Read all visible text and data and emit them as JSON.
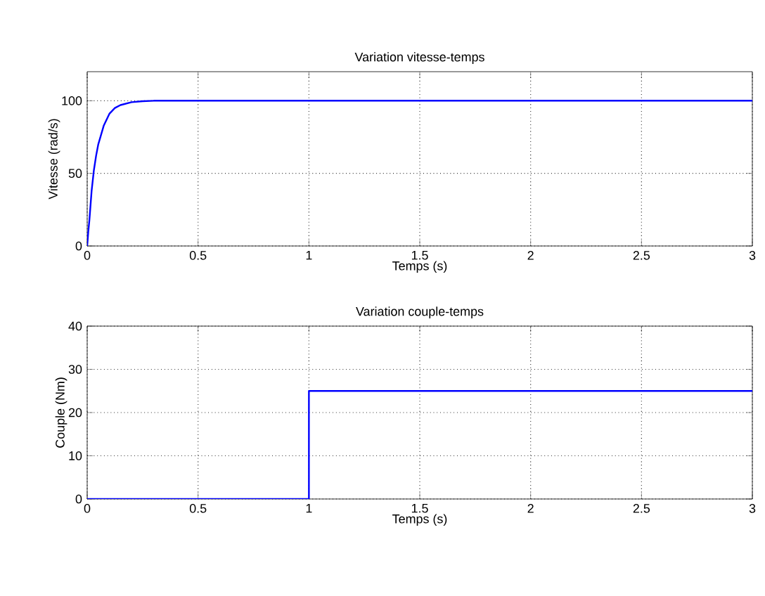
{
  "chart_data": [
    {
      "type": "line",
      "title": "Variation vitesse-temps",
      "xlabel": "Temps (s)",
      "ylabel": "Vitesse (rad/s)",
      "series": [
        {
          "color": "#0000ff",
          "x": [
            0,
            0.005,
            0.01,
            0.02,
            0.03,
            0.04,
            0.05,
            0.075,
            0.1,
            0.125,
            0.15,
            0.2,
            0.25,
            0.3,
            3
          ],
          "values": [
            0,
            10,
            18,
            38,
            52,
            62,
            70,
            83,
            91,
            95,
            97,
            99,
            99.7,
            100,
            100
          ]
        }
      ],
      "xlim": [
        0,
        3
      ],
      "ylim": [
        0,
        120
      ],
      "xticks": [
        0,
        0.5,
        1,
        1.5,
        2,
        2.5,
        3
      ],
      "yticks": [
        0,
        50,
        100
      ],
      "grid": true,
      "line_style": "solid"
    },
    {
      "type": "line",
      "title": "Variation couple-temps",
      "xlabel": "Temps (s)",
      "ylabel": "Couple (Nm)",
      "series": [
        {
          "color": "#0000ff",
          "x": [
            0,
            1,
            1,
            3
          ],
          "values": [
            0,
            0,
            25,
            25
          ]
        }
      ],
      "xlim": [
        0,
        3
      ],
      "ylim": [
        0,
        40
      ],
      "xticks": [
        0,
        0.5,
        1,
        1.5,
        2,
        2.5,
        3
      ],
      "yticks": [
        0,
        10,
        20,
        30,
        40
      ],
      "grid": true,
      "line_style": "solid"
    }
  ]
}
